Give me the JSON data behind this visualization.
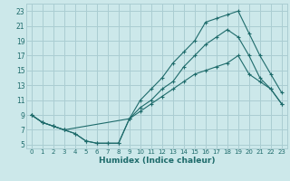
{
  "xlabel": "Humidex (Indice chaleur)",
  "xlim": [
    -0.5,
    23.5
  ],
  "ylim": [
    4.5,
    24
  ],
  "xticks": [
    0,
    1,
    2,
    3,
    4,
    5,
    6,
    7,
    8,
    9,
    10,
    11,
    12,
    13,
    14,
    15,
    16,
    17,
    18,
    19,
    20,
    21,
    22,
    23
  ],
  "yticks": [
    5,
    7,
    9,
    11,
    13,
    15,
    17,
    19,
    21,
    23
  ],
  "bg_color": "#cce8ea",
  "grid_color": "#aacdd2",
  "line_color": "#1e6b6b",
  "line1_x": [
    0,
    1,
    2,
    3,
    4,
    5,
    6,
    7,
    8,
    9,
    10,
    11,
    12,
    13,
    14,
    15,
    16,
    17,
    18,
    19,
    20,
    21,
    22,
    23
  ],
  "line1_y": [
    9,
    8,
    7.5,
    7,
    6.5,
    5.5,
    5.2,
    5.2,
    5.2,
    8.5,
    9.5,
    10.5,
    11.5,
    12.5,
    13.5,
    14.5,
    15,
    15.5,
    16,
    17,
    14.5,
    13.5,
    12.5,
    10.5
  ],
  "line2_x": [
    0,
    1,
    2,
    3,
    9,
    10,
    11,
    12,
    13,
    14,
    15,
    16,
    17,
    18,
    19,
    20,
    21,
    22,
    23
  ],
  "line2_y": [
    9,
    8,
    7.5,
    7,
    8.5,
    11,
    12.5,
    14,
    16,
    17.5,
    19,
    21.5,
    22,
    22.5,
    23,
    20,
    17,
    14.5,
    12
  ],
  "line3_x": [
    0,
    1,
    2,
    3,
    4,
    5,
    6,
    7,
    8,
    9,
    10,
    11,
    12,
    13,
    14,
    15,
    16,
    17,
    18,
    19,
    20,
    21,
    22,
    23
  ],
  "line3_y": [
    9,
    8,
    7.5,
    7,
    6.5,
    5.5,
    5.2,
    5.2,
    5.2,
    8.5,
    10,
    11,
    12.5,
    13.5,
    15.5,
    17,
    18.5,
    19.5,
    20.5,
    19.5,
    17,
    14,
    12.5,
    10.5
  ]
}
